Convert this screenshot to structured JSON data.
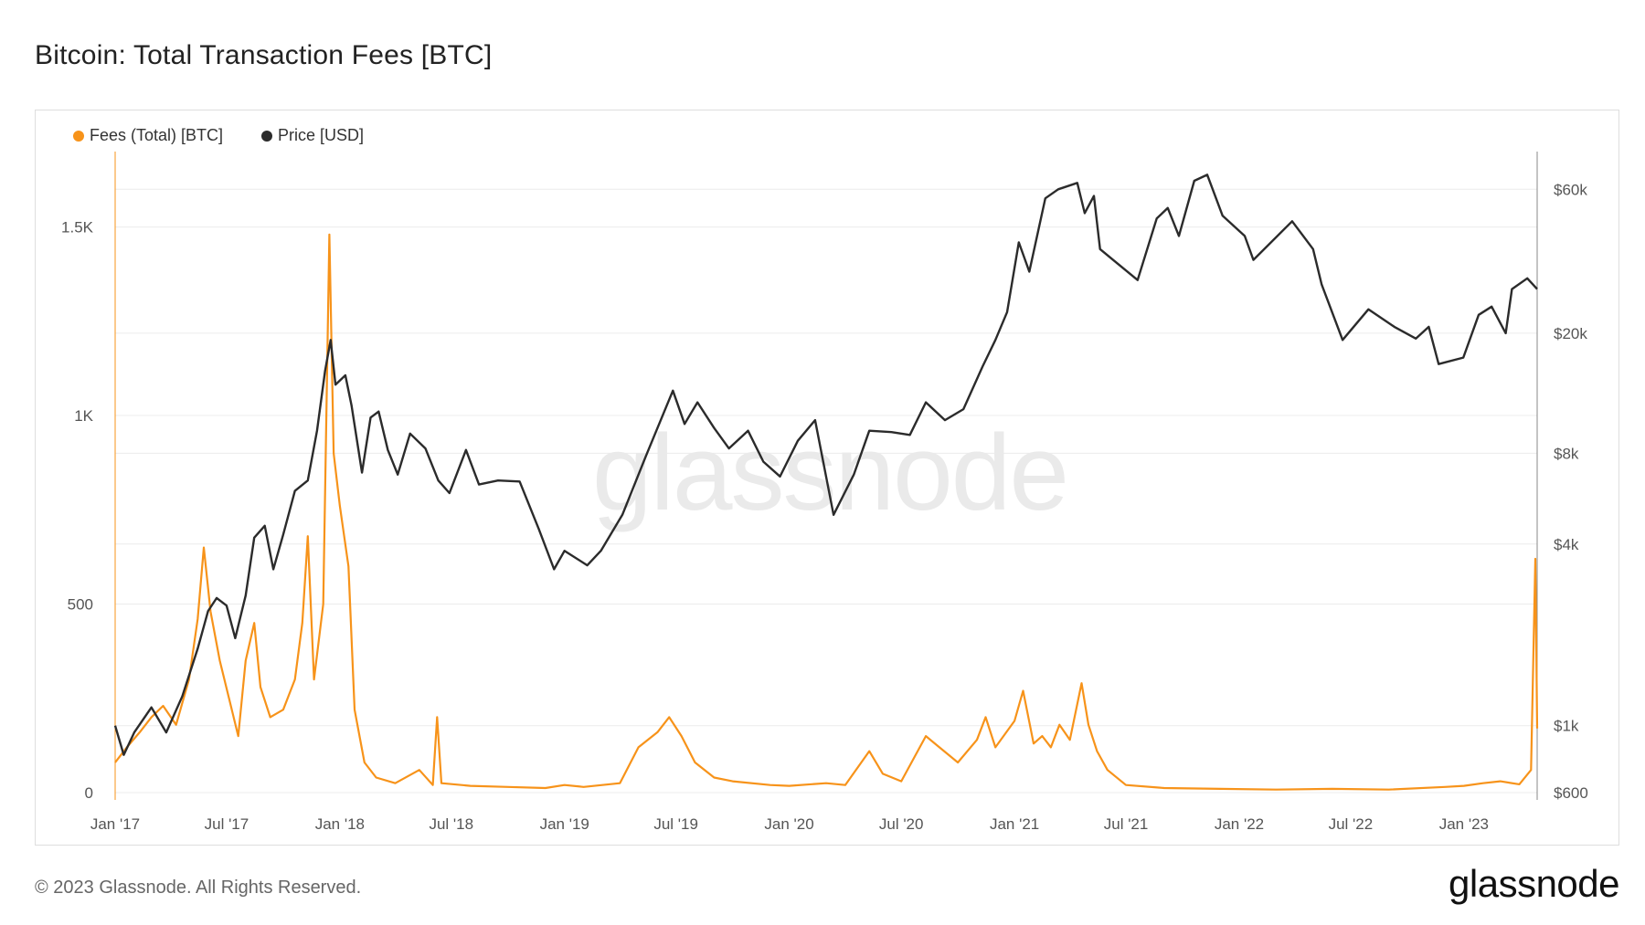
{
  "title": "Bitcoin: Total Transaction Fees [BTC]",
  "footer": "© 2023 Glassnode. All Rights Reserved.",
  "brand": "glassnode",
  "watermark": "glassnode",
  "legend": [
    {
      "label": "Fees (Total) [BTC]",
      "color": "#f7931a"
    },
    {
      "label": "Price [USD]",
      "color": "#2b2b2b"
    }
  ],
  "chart_data": {
    "type": "line",
    "title": "Bitcoin: Total Transaction Fees [BTC]",
    "grid": true,
    "legend_position": "top-left",
    "x_axis": {
      "type": "date",
      "range": [
        "2017-01-01",
        "2023-04-30"
      ],
      "ticks": [
        {
          "date": "2017-01-01",
          "label": "Jan '17"
        },
        {
          "date": "2017-07-01",
          "label": "Jul '17"
        },
        {
          "date": "2018-01-01",
          "label": "Jan '18"
        },
        {
          "date": "2018-07-01",
          "label": "Jul '18"
        },
        {
          "date": "2019-01-01",
          "label": "Jan '19"
        },
        {
          "date": "2019-07-01",
          "label": "Jul '19"
        },
        {
          "date": "2020-01-01",
          "label": "Jan '20"
        },
        {
          "date": "2020-07-01",
          "label": "Jul '20"
        },
        {
          "date": "2021-01-01",
          "label": "Jan '21"
        },
        {
          "date": "2021-07-01",
          "label": "Jul '21"
        },
        {
          "date": "2022-01-01",
          "label": "Jan '22"
        },
        {
          "date": "2022-07-01",
          "label": "Jul '22"
        },
        {
          "date": "2023-01-01",
          "label": "Jan '23"
        }
      ]
    },
    "y_left": {
      "scale": "linear",
      "range": [
        0,
        1700
      ],
      "ticks": [
        {
          "value": 0,
          "label": "0"
        },
        {
          "value": 500,
          "label": "500"
        },
        {
          "value": 1000,
          "label": "1K"
        },
        {
          "value": 1500,
          "label": "1.5K"
        }
      ]
    },
    "y_right": {
      "scale": "log",
      "range": [
        600,
        80000
      ],
      "ticks": [
        {
          "value": 600,
          "label": "$600"
        },
        {
          "value": 1000,
          "label": "$1k"
        },
        {
          "value": 4000,
          "label": "$4k"
        },
        {
          "value": 8000,
          "label": "$8k"
        },
        {
          "value": 20000,
          "label": "$20k"
        },
        {
          "value": 60000,
          "label": "$60k"
        }
      ]
    },
    "series": [
      {
        "name": "Fees (Total) [BTC]",
        "axis": "left",
        "color": "#f7931a",
        "points": [
          [
            "2017-01-01",
            80
          ],
          [
            "2017-01-20",
            120
          ],
          [
            "2017-02-10",
            160
          ],
          [
            "2017-03-01",
            200
          ],
          [
            "2017-03-20",
            230
          ],
          [
            "2017-04-10",
            180
          ],
          [
            "2017-05-01",
            300
          ],
          [
            "2017-05-15",
            460
          ],
          [
            "2017-05-25",
            650
          ],
          [
            "2017-06-05",
            480
          ],
          [
            "2017-06-20",
            350
          ],
          [
            "2017-07-05",
            250
          ],
          [
            "2017-07-20",
            150
          ],
          [
            "2017-08-01",
            350
          ],
          [
            "2017-08-15",
            450
          ],
          [
            "2017-08-25",
            280
          ],
          [
            "2017-09-10",
            200
          ],
          [
            "2017-10-01",
            220
          ],
          [
            "2017-10-20",
            300
          ],
          [
            "2017-11-01",
            450
          ],
          [
            "2017-11-10",
            680
          ],
          [
            "2017-11-20",
            300
          ],
          [
            "2017-12-05",
            500
          ],
          [
            "2017-12-15",
            1480
          ],
          [
            "2017-12-22",
            900
          ],
          [
            "2018-01-01",
            760
          ],
          [
            "2018-01-15",
            600
          ],
          [
            "2018-01-25",
            220
          ],
          [
            "2018-02-10",
            80
          ],
          [
            "2018-03-01",
            40
          ],
          [
            "2018-04-01",
            25
          ],
          [
            "2018-05-10",
            60
          ],
          [
            "2018-06-01",
            20
          ],
          [
            "2018-06-08",
            200
          ],
          [
            "2018-06-15",
            25
          ],
          [
            "2018-08-01",
            18
          ],
          [
            "2018-10-01",
            15
          ],
          [
            "2018-12-01",
            12
          ],
          [
            "2019-01-01",
            20
          ],
          [
            "2019-02-01",
            15
          ],
          [
            "2019-04-01",
            25
          ],
          [
            "2019-05-01",
            120
          ],
          [
            "2019-06-01",
            160
          ],
          [
            "2019-06-20",
            200
          ],
          [
            "2019-07-10",
            150
          ],
          [
            "2019-08-01",
            80
          ],
          [
            "2019-09-01",
            40
          ],
          [
            "2019-10-01",
            30
          ],
          [
            "2019-12-01",
            20
          ],
          [
            "2020-01-01",
            18
          ],
          [
            "2020-03-01",
            25
          ],
          [
            "2020-04-01",
            20
          ],
          [
            "2020-05-10",
            110
          ],
          [
            "2020-06-01",
            50
          ],
          [
            "2020-07-01",
            30
          ],
          [
            "2020-08-10",
            150
          ],
          [
            "2020-09-01",
            120
          ],
          [
            "2020-10-01",
            80
          ],
          [
            "2020-11-01",
            140
          ],
          [
            "2020-11-15",
            200
          ],
          [
            "2020-12-01",
            120
          ],
          [
            "2021-01-01",
            190
          ],
          [
            "2021-01-15",
            270
          ],
          [
            "2021-02-01",
            130
          ],
          [
            "2021-02-15",
            150
          ],
          [
            "2021-03-01",
            120
          ],
          [
            "2021-03-15",
            180
          ],
          [
            "2021-04-01",
            140
          ],
          [
            "2021-04-20",
            290
          ],
          [
            "2021-05-01",
            180
          ],
          [
            "2021-05-15",
            110
          ],
          [
            "2021-06-01",
            60
          ],
          [
            "2021-07-01",
            20
          ],
          [
            "2021-09-01",
            12
          ],
          [
            "2021-12-01",
            10
          ],
          [
            "2022-03-01",
            8
          ],
          [
            "2022-06-01",
            10
          ],
          [
            "2022-09-01",
            8
          ],
          [
            "2022-12-01",
            15
          ],
          [
            "2023-01-01",
            18
          ],
          [
            "2023-02-01",
            25
          ],
          [
            "2023-03-01",
            30
          ],
          [
            "2023-04-01",
            22
          ],
          [
            "2023-04-20",
            60
          ],
          [
            "2023-04-27",
            620
          ],
          [
            "2023-04-30",
            170
          ]
        ]
      },
      {
        "name": "Price [USD]",
        "axis": "right",
        "color": "#2b2b2b",
        "points": [
          [
            "2017-01-01",
            1000
          ],
          [
            "2017-01-15",
            800
          ],
          [
            "2017-02-01",
            950
          ],
          [
            "2017-03-01",
            1150
          ],
          [
            "2017-03-25",
            950
          ],
          [
            "2017-04-20",
            1250
          ],
          [
            "2017-05-15",
            1800
          ],
          [
            "2017-06-01",
            2400
          ],
          [
            "2017-06-15",
            2650
          ],
          [
            "2017-07-01",
            2500
          ],
          [
            "2017-07-15",
            1950
          ],
          [
            "2017-08-01",
            2700
          ],
          [
            "2017-08-15",
            4200
          ],
          [
            "2017-09-01",
            4600
          ],
          [
            "2017-09-15",
            3300
          ],
          [
            "2017-10-01",
            4300
          ],
          [
            "2017-10-20",
            6000
          ],
          [
            "2017-11-10",
            6500
          ],
          [
            "2017-11-25",
            9500
          ],
          [
            "2017-12-08",
            15000
          ],
          [
            "2017-12-17",
            19000
          ],
          [
            "2017-12-25",
            13500
          ],
          [
            "2018-01-10",
            14500
          ],
          [
            "2018-01-20",
            11500
          ],
          [
            "2018-02-06",
            6900
          ],
          [
            "2018-02-20",
            10500
          ],
          [
            "2018-03-05",
            11000
          ],
          [
            "2018-03-20",
            8200
          ],
          [
            "2018-04-05",
            6800
          ],
          [
            "2018-04-25",
            9300
          ],
          [
            "2018-05-20",
            8300
          ],
          [
            "2018-06-10",
            6500
          ],
          [
            "2018-06-28",
            5900
          ],
          [
            "2018-07-25",
            8200
          ],
          [
            "2018-08-15",
            6300
          ],
          [
            "2018-09-15",
            6500
          ],
          [
            "2018-10-20",
            6450
          ],
          [
            "2018-11-20",
            4500
          ],
          [
            "2018-12-15",
            3300
          ],
          [
            "2019-01-01",
            3800
          ],
          [
            "2019-02-07",
            3400
          ],
          [
            "2019-03-01",
            3800
          ],
          [
            "2019-04-05",
            5000
          ],
          [
            "2019-05-15",
            8000
          ],
          [
            "2019-06-26",
            12900
          ],
          [
            "2019-07-15",
            10000
          ],
          [
            "2019-08-05",
            11800
          ],
          [
            "2019-09-01",
            9700
          ],
          [
            "2019-09-25",
            8300
          ],
          [
            "2019-10-26",
            9500
          ],
          [
            "2019-11-20",
            7500
          ],
          [
            "2019-12-17",
            6700
          ],
          [
            "2020-01-15",
            8800
          ],
          [
            "2020-02-12",
            10300
          ],
          [
            "2020-03-13",
            5000
          ],
          [
            "2020-04-15",
            6800
          ],
          [
            "2020-05-10",
            9500
          ],
          [
            "2020-06-15",
            9400
          ],
          [
            "2020-07-15",
            9200
          ],
          [
            "2020-08-10",
            11800
          ],
          [
            "2020-09-10",
            10300
          ],
          [
            "2020-10-10",
            11200
          ],
          [
            "2020-11-10",
            15500
          ],
          [
            "2020-12-01",
            19000
          ],
          [
            "2020-12-20",
            23500
          ],
          [
            "2021-01-08",
            40000
          ],
          [
            "2021-01-25",
            32000
          ],
          [
            "2021-02-20",
            56000
          ],
          [
            "2021-03-13",
            60000
          ],
          [
            "2021-04-13",
            63000
          ],
          [
            "2021-04-25",
            50000
          ],
          [
            "2021-05-10",
            57000
          ],
          [
            "2021-05-20",
            38000
          ],
          [
            "2021-06-10",
            35000
          ],
          [
            "2021-07-20",
            30000
          ],
          [
            "2021-08-20",
            48000
          ],
          [
            "2021-09-07",
            52000
          ],
          [
            "2021-09-25",
            42000
          ],
          [
            "2021-10-20",
            64000
          ],
          [
            "2021-11-10",
            67000
          ],
          [
            "2021-12-05",
            49000
          ],
          [
            "2022-01-10",
            42000
          ],
          [
            "2022-01-24",
            35000
          ],
          [
            "2022-03-28",
            47000
          ],
          [
            "2022-05-01",
            38000
          ],
          [
            "2022-05-15",
            29000
          ],
          [
            "2022-06-18",
            19000
          ],
          [
            "2022-07-30",
            24000
          ],
          [
            "2022-09-10",
            21000
          ],
          [
            "2022-10-15",
            19200
          ],
          [
            "2022-11-05",
            21000
          ],
          [
            "2022-11-21",
            15800
          ],
          [
            "2022-12-31",
            16600
          ],
          [
            "2023-01-25",
            23000
          ],
          [
            "2023-02-15",
            24500
          ],
          [
            "2023-03-10",
            20000
          ],
          [
            "2023-03-20",
            28000
          ],
          [
            "2023-04-14",
            30400
          ],
          [
            "2023-04-30",
            28000
          ]
        ]
      }
    ]
  }
}
